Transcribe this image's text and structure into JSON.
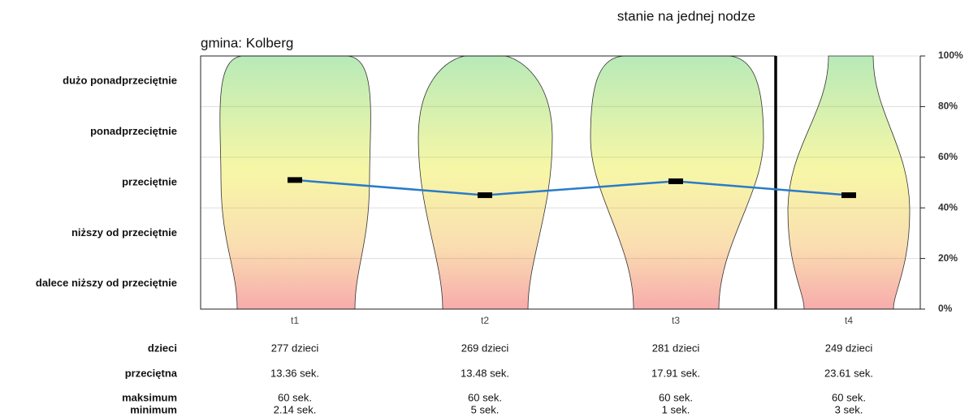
{
  "chart_data": {
    "type": "line",
    "title": "stanie na jednej nodze",
    "subtitle": "gmina: Kolberg",
    "categories": [
      "t1",
      "t2",
      "t3",
      "t4"
    ],
    "series": [
      {
        "color": "#2a7bc8",
        "values": [
          51,
          45,
          50.5,
          45
        ]
      }
    ],
    "ylim": [
      0,
      100
    ],
    "yticks": [
      {
        "value": 0,
        "label": "0%"
      },
      {
        "value": 20,
        "label": "20%"
      },
      {
        "value": 40,
        "label": "40%"
      },
      {
        "value": 60,
        "label": "60%"
      },
      {
        "value": 80,
        "label": "80%"
      },
      {
        "value": 100,
        "label": "100%"
      }
    ],
    "grid": true,
    "band_labels": [
      "dużo ponadprzeciętnie",
      "ponadprzeciętnie",
      "przeciętnie",
      "niższy od przeciętnie",
      "dalece niższy od przeciętnie"
    ]
  },
  "table": {
    "rows": [
      {
        "label": "dzieci",
        "values": [
          "277 dzieci",
          "269 dzieci",
          "281 dzieci",
          "249 dzieci"
        ]
      },
      {
        "label": "przeciętna",
        "values": [
          "13.36 sek.",
          "13.48 sek.",
          "17.91 sek.",
          "23.61 sek."
        ]
      },
      {
        "label": "maksimum",
        "values": [
          "60 sek.",
          "60 sek.",
          "60 sek.",
          "60 sek."
        ]
      },
      {
        "label": "minimum",
        "values": [
          "2.14 sek.",
          "5 sek.",
          "1 sek.",
          "3 sek."
        ]
      }
    ]
  }
}
